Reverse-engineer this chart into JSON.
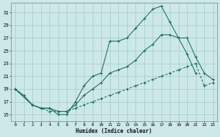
{
  "title": "",
  "xlabel": "Humidex (Indice chaleur)",
  "bg_color": "#cce8e8",
  "grid_color": "#aacccc",
  "line_color": "#1a6b5a",
  "xlim": [
    -0.5,
    23.5
  ],
  "ylim": [
    14,
    32.5
  ],
  "xticks": [
    0,
    1,
    2,
    3,
    4,
    5,
    6,
    7,
    8,
    9,
    10,
    11,
    12,
    13,
    14,
    15,
    16,
    17,
    18,
    19,
    20,
    21,
    22,
    23
  ],
  "yticks": [
    15,
    17,
    19,
    21,
    23,
    25,
    27,
    29,
    31
  ],
  "top_x": [
    0,
    1,
    2,
    3,
    4,
    5,
    6,
    7,
    8,
    9,
    10,
    11,
    12,
    13,
    14,
    15,
    16,
    17,
    18,
    19,
    20,
    21
  ],
  "top_y": [
    19,
    18,
    16.5,
    16,
    16,
    15,
    15,
    17,
    19.5,
    21,
    21.5,
    26.5,
    26.5,
    27,
    28.5,
    30,
    31.5,
    32,
    29.5,
    27,
    24.5,
    21.5
  ],
  "mid_x": [
    0,
    2,
    3,
    4,
    5,
    6,
    7,
    8,
    9,
    10,
    11,
    12,
    13,
    14,
    15,
    16,
    17,
    18,
    19,
    20,
    21,
    22,
    23
  ],
  "mid_y": [
    19,
    16.5,
    16,
    16,
    15.5,
    15.5,
    16.5,
    18,
    19,
    20,
    21.5,
    22,
    22.5,
    23.5,
    25,
    26,
    27.5,
    27.5,
    27,
    27,
    24,
    21.5,
    20.5
  ],
  "bot_x": [
    0,
    2,
    3,
    4,
    5,
    6,
    7,
    8,
    9,
    10,
    11,
    12,
    13,
    14,
    15,
    16,
    17,
    18,
    19,
    20,
    21,
    22,
    23
  ],
  "bot_y": [
    19,
    16.5,
    16,
    15.5,
    15.5,
    15.5,
    16,
    16.5,
    17,
    17.5,
    18,
    18.5,
    19,
    19.5,
    20,
    20.5,
    21,
    21.5,
    22,
    22.5,
    23,
    19.5,
    20
  ]
}
